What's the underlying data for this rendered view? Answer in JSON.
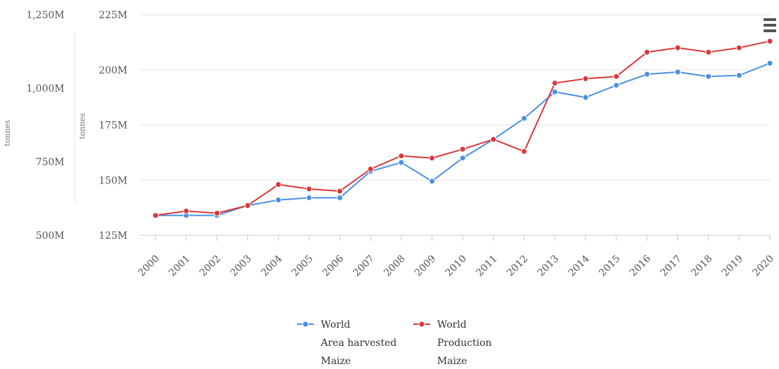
{
  "chart_data": {
    "type": "line",
    "x": [
      "2000",
      "2001",
      "2002",
      "2003",
      "2004",
      "2005",
      "2006",
      "2007",
      "2008",
      "2009",
      "2010",
      "2011",
      "2012",
      "2013",
      "2014",
      "2015",
      "2016",
      "2017",
      "2018",
      "2019",
      "2020"
    ],
    "left_axis": {
      "title": "tonnes",
      "range": [
        500,
        1250
      ],
      "ticks": [
        "500M",
        "750M",
        "1,000M",
        "1,250M"
      ]
    },
    "right_axis": {
      "title": "tonnes",
      "range": [
        125,
        225
      ],
      "ticks": [
        "125M",
        "150M",
        "175M",
        "200M",
        "225M"
      ]
    },
    "series": [
      {
        "name": [
          "World",
          "Area harvested",
          "Maize"
        ],
        "color": "#4a90e2",
        "axis": "right",
        "values": [
          134,
          134,
          134,
          138.5,
          141,
          142,
          142,
          154,
          158,
          149.5,
          160,
          168.5,
          178,
          190,
          187.5,
          193,
          198,
          199,
          197,
          197.5,
          203
        ]
      },
      {
        "name": [
          "World",
          "Production",
          "Maize"
        ],
        "color": "#d9383a",
        "axis": "right",
        "values": [
          134,
          136,
          135,
          138.5,
          148,
          146,
          145,
          155,
          161,
          160,
          164,
          168.5,
          163,
          194,
          196,
          197,
          208,
          210,
          208,
          210,
          213
        ]
      }
    ],
    "grid": true,
    "legend_position": "bottom"
  },
  "menu": {
    "icon": "hamburger-menu-icon"
  }
}
